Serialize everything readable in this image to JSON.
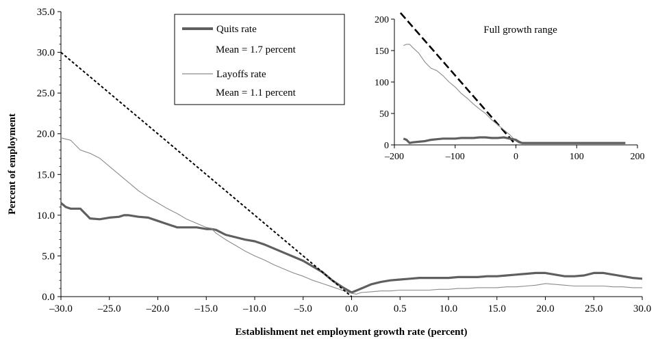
{
  "chart_data": [
    {
      "type": "line",
      "title": "",
      "xlabel": "Establishment net employment growth rate (percent)",
      "ylabel": "Percent of employment",
      "xlim": [
        -30,
        30
      ],
      "ylim": [
        0,
        35
      ],
      "x_ticks": [
        "–30.0",
        "–25.0",
        "–20.0",
        "–15.0",
        "–10.0",
        "–5.0",
        "0.0",
        "0.5",
        "10.0",
        "15.0",
        "20.0",
        "25.0",
        "30.0"
      ],
      "y_ticks": [
        "0.0",
        "5.0",
        "10.0",
        "15.0",
        "20.0",
        "25.0",
        "30.0",
        "35.0"
      ],
      "legend": {
        "position": "top-center",
        "entries": [
          {
            "label": "Quits rate",
            "sublabel": "Mean = 1.7 percent"
          },
          {
            "label": "Layoffs rate",
            "sublabel": "Mean = 1.1 percent"
          }
        ]
      },
      "series": [
        {
          "name": "Quits rate",
          "color": "#5f5f5f",
          "style": "thick",
          "x": [
            -30,
            -29.5,
            -29,
            -28,
            -27.5,
            -27,
            -26,
            -25,
            -24,
            -23.5,
            -23,
            -22,
            -21,
            -20,
            -19,
            -18,
            -17,
            -16,
            -15,
            -14.5,
            -14,
            -13,
            -12,
            -11,
            -10,
            -9,
            -8,
            -7,
            -6,
            -5,
            -4,
            -3,
            -2,
            -1,
            0,
            1,
            2,
            3,
            4,
            5,
            6,
            7,
            8,
            9,
            10,
            11,
            12,
            13,
            14,
            15,
            16,
            17,
            18,
            19,
            20,
            21,
            22,
            23,
            24,
            25,
            26,
            27,
            28,
            29,
            30
          ],
          "y": [
            11.5,
            11.0,
            10.8,
            10.8,
            10.2,
            9.6,
            9.5,
            9.7,
            9.8,
            10.0,
            10.0,
            9.8,
            9.7,
            9.3,
            8.9,
            8.5,
            8.5,
            8.5,
            8.3,
            8.3,
            8.2,
            7.6,
            7.3,
            7.0,
            6.8,
            6.4,
            5.9,
            5.4,
            4.9,
            4.4,
            3.7,
            3.0,
            2.0,
            1.2,
            0.5,
            1.0,
            1.5,
            1.8,
            2.0,
            2.1,
            2.2,
            2.3,
            2.3,
            2.3,
            2.3,
            2.4,
            2.4,
            2.4,
            2.5,
            2.5,
            2.6,
            2.7,
            2.8,
            2.9,
            2.9,
            2.7,
            2.5,
            2.5,
            2.6,
            2.9,
            2.9,
            2.7,
            2.5,
            2.3,
            2.2
          ]
        },
        {
          "name": "Layoffs rate",
          "color": "#8a8a8a",
          "style": "thin",
          "x": [
            -30,
            -29,
            -28,
            -27,
            -26,
            -25,
            -24,
            -23,
            -22,
            -21,
            -20,
            -19,
            -18,
            -17,
            -16,
            -15,
            -14.5,
            -14,
            -13,
            -12,
            -11,
            -10,
            -9,
            -8,
            -7,
            -6,
            -5,
            -4,
            -3,
            -2,
            -1,
            0,
            0.5,
            1,
            2,
            3,
            4,
            5,
            6,
            7,
            8,
            9,
            10,
            11,
            12,
            13,
            14,
            15,
            16,
            17,
            18,
            19,
            20,
            21,
            22,
            23,
            24,
            25,
            26,
            27,
            28,
            29,
            30
          ],
          "y": [
            19.5,
            19.2,
            18.0,
            17.6,
            17.0,
            16.0,
            15.0,
            14.0,
            13.0,
            12.2,
            11.5,
            10.8,
            10.2,
            9.5,
            9.0,
            8.5,
            8.4,
            7.8,
            7.0,
            6.3,
            5.6,
            5.0,
            4.5,
            3.9,
            3.4,
            2.9,
            2.5,
            2.0,
            1.6,
            1.2,
            0.8,
            0.4,
            0.3,
            0.5,
            0.6,
            0.7,
            0.7,
            0.8,
            0.8,
            0.8,
            0.8,
            0.9,
            0.9,
            1.0,
            1.0,
            1.1,
            1.1,
            1.1,
            1.2,
            1.2,
            1.3,
            1.4,
            1.6,
            1.5,
            1.4,
            1.3,
            1.3,
            1.3,
            1.3,
            1.2,
            1.2,
            1.1,
            1.1
          ]
        },
        {
          "name": "",
          "color": "#000000",
          "style": "dotted",
          "x": [
            -30,
            0
          ],
          "y": [
            30,
            0
          ]
        }
      ]
    },
    {
      "type": "line",
      "title": "Full growth range",
      "xlim": [
        -200,
        200
      ],
      "ylim": [
        0,
        200
      ],
      "x_ticks": [
        "–200",
        "–100",
        "0",
        "100",
        "200"
      ],
      "y_ticks": [
        "0",
        "50",
        "100",
        "150",
        "200"
      ],
      "series": [
        {
          "name": "",
          "color": "#000000",
          "style": "dashed",
          "x": [
            -190,
            0
          ],
          "y": [
            210,
            0
          ]
        },
        {
          "name": "",
          "color": "#8a8a8a",
          "style": "thin",
          "x": [
            -185,
            -180,
            -175,
            -170,
            -160,
            -150,
            -140,
            -130,
            -120,
            -110,
            -100,
            -90,
            -80,
            -70,
            -60,
            -50,
            -40,
            -30,
            -20,
            -10,
            0,
            5,
            10,
            20,
            50,
            100,
            150,
            180
          ],
          "y": [
            158,
            160,
            160,
            155,
            146,
            132,
            122,
            118,
            110,
            100,
            92,
            82,
            74,
            65,
            57,
            50,
            40,
            32,
            24,
            16,
            6,
            3,
            2,
            2,
            2,
            2,
            2,
            2
          ]
        },
        {
          "name": "",
          "color": "#5f5f5f",
          "style": "thick",
          "x": [
            -185,
            -180,
            -175,
            -170,
            -160,
            -150,
            -140,
            -130,
            -120,
            -110,
            -100,
            -90,
            -80,
            -70,
            -60,
            -50,
            -40,
            -30,
            -20,
            -10,
            0,
            5,
            10,
            20,
            50,
            100,
            150,
            180
          ],
          "y": [
            10,
            8,
            3,
            4,
            5,
            6,
            8,
            9,
            10,
            10,
            10,
            11,
            11,
            11,
            12,
            12,
            11,
            11,
            12,
            10,
            8,
            5,
            3,
            3,
            3,
            3,
            3,
            3
          ]
        }
      ]
    }
  ]
}
